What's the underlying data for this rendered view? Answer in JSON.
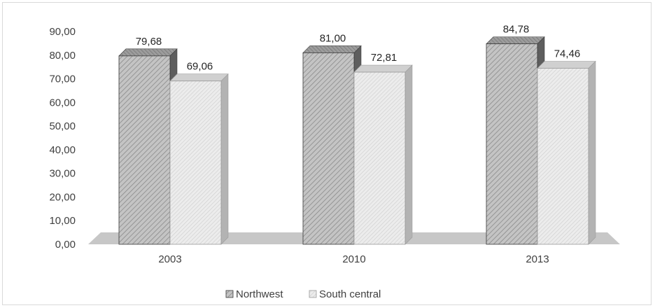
{
  "chart_data": {
    "type": "bar",
    "title": "",
    "xlabel": "",
    "ylabel": "",
    "categories": [
      "2003",
      "2010",
      "2013"
    ],
    "series": [
      {
        "name": "Northwest",
        "values": [
          79.68,
          81.0,
          84.78
        ],
        "value_labels": [
          "79,68",
          "81,00",
          "84,78"
        ]
      },
      {
        "name": "South central",
        "values": [
          69.06,
          72.81,
          74.46
        ],
        "value_labels": [
          "69,06",
          "72,81",
          "74,46"
        ]
      }
    ],
    "ylim": [
      0,
      90
    ],
    "yticks": [
      0,
      10,
      20,
      30,
      40,
      50,
      60,
      70,
      80,
      90
    ],
    "ytick_labels": [
      "0,00",
      "10,00",
      "20,00",
      "30,00",
      "40,00",
      "50,00",
      "60,00",
      "70,00",
      "80,00",
      "90,00"
    ],
    "grid": false,
    "legend_position": "bottom",
    "style": "3d-clustered-column-hatched"
  },
  "colors": {
    "northwest_face": "#c4c4c4",
    "northwest_hatch": "#8a8a8a",
    "northwest_side": "#5e5e5e",
    "northwest_top": "#9c9c9c",
    "south_face": "#ececec",
    "south_hatch": "#c9c9c9",
    "south_side": "#b3b3b3",
    "south_top": "#d0d0d0",
    "floor": "#c7c7c7",
    "text": "#404040"
  }
}
